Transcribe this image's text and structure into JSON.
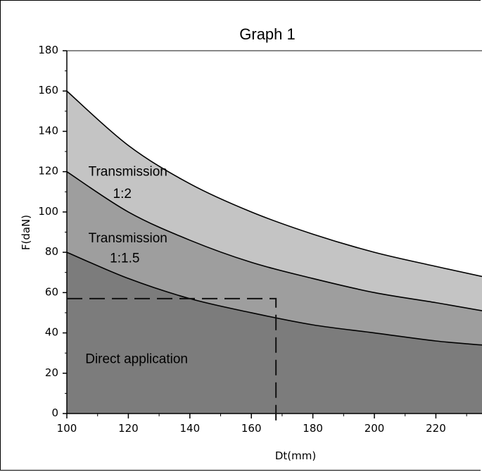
{
  "chart_data": {
    "type": "area",
    "title": "Graph 1",
    "xlabel": "Dt(mm)",
    "ylabel": "F(daN)",
    "xlim": [
      100,
      235
    ],
    "ylim": [
      0,
      180
    ],
    "x_ticks": [
      100,
      120,
      140,
      160,
      180,
      200,
      220
    ],
    "y_ticks": [
      0,
      20,
      40,
      60,
      80,
      100,
      120,
      140,
      160,
      180
    ],
    "grid": false,
    "legend": "none",
    "x": [
      100,
      120,
      140,
      160,
      180,
      200,
      220,
      235
    ],
    "series": [
      {
        "values": [
          160,
          133,
          114,
          100,
          89,
          80,
          73,
          68
        ]
      },
      {
        "values": [
          120,
          100,
          86,
          75,
          67,
          60,
          55,
          51
        ]
      },
      {
        "values": [
          80,
          67,
          57,
          50,
          44,
          40,
          36,
          34
        ]
      }
    ],
    "annotations": [
      {
        "text": "Transmission",
        "x": 107,
        "y": 118
      },
      {
        "text": "1:2",
        "x": 115,
        "y": 107
      },
      {
        "text": "Transmission",
        "x": 107,
        "y": 85
      },
      {
        "text": "1:1.5",
        "x": 114,
        "y": 75
      },
      {
        "text": "Direct application",
        "x": 106,
        "y": 25
      }
    ],
    "guide": {
      "x": 168,
      "y": 57
    },
    "colors": {
      "top_band": "#c4c4c4",
      "middle_band": "#9e9e9e",
      "bottom_band": "#7c7c7c",
      "curve": "#000000",
      "top_border": "#888888"
    }
  }
}
